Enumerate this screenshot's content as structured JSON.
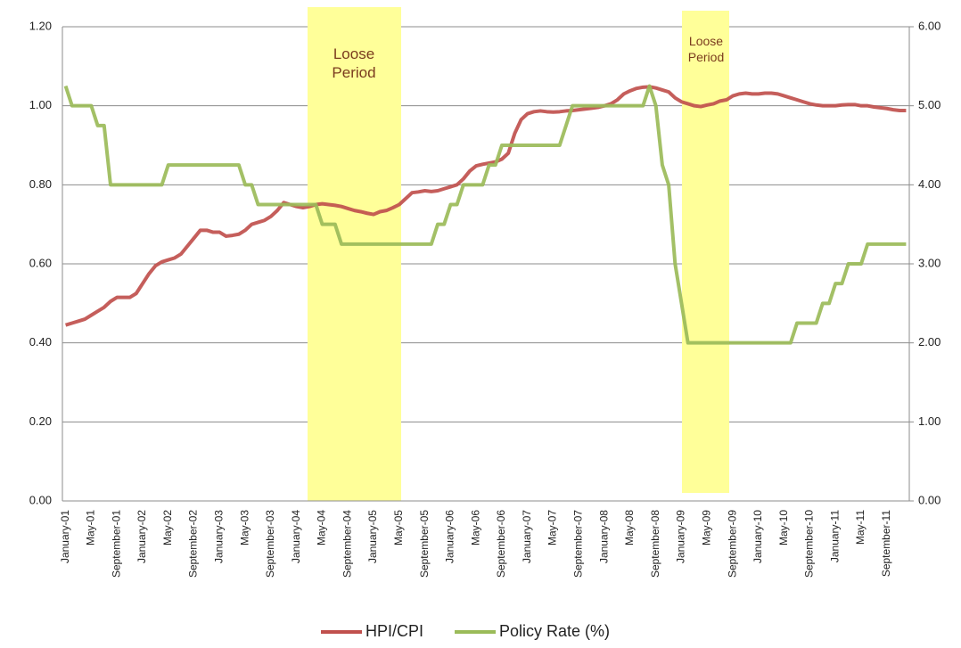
{
  "chart_data": {
    "type": "line",
    "annotations": [
      "Loose Period",
      "Loose Period"
    ],
    "categories": [
      "January-01",
      null,
      null,
      null,
      "May-01",
      null,
      null,
      null,
      "September-01",
      null,
      null,
      null,
      "January-02",
      null,
      null,
      null,
      "May-02",
      null,
      null,
      null,
      "September-02",
      null,
      null,
      null,
      "January-03",
      null,
      null,
      null,
      "May-03",
      null,
      null,
      null,
      "September-03",
      null,
      null,
      null,
      "January-04",
      null,
      null,
      null,
      "May-04",
      null,
      null,
      null,
      "September-04",
      null,
      null,
      null,
      "January-05",
      null,
      null,
      null,
      "May-05",
      null,
      null,
      null,
      "September-05",
      null,
      null,
      null,
      "January-06",
      null,
      null,
      null,
      "May-06",
      null,
      null,
      null,
      "September-06",
      null,
      null,
      null,
      "January-07",
      null,
      null,
      null,
      "May-07",
      null,
      null,
      null,
      "September-07",
      null,
      null,
      null,
      "January-08",
      null,
      null,
      null,
      "May-08",
      null,
      null,
      null,
      "September-08",
      null,
      null,
      null,
      "January-09",
      null,
      null,
      null,
      "May-09",
      null,
      null,
      null,
      "September-09",
      null,
      null,
      null,
      "January-10",
      null,
      null,
      null,
      "May-10",
      null,
      null,
      null,
      "September-10",
      null,
      null,
      null,
      "January-11",
      null,
      null,
      null,
      "May-11",
      null,
      null,
      null,
      "September-11",
      null,
      null,
      null
    ],
    "series": [
      {
        "name": "HPI/CPI",
        "color": "#c0504d",
        "axis": "y",
        "values": [
          0.445,
          0.45,
          0.455,
          0.46,
          0.47,
          0.48,
          0.49,
          0.505,
          0.515,
          0.515,
          0.515,
          0.525,
          0.55,
          0.575,
          0.595,
          0.605,
          0.61,
          0.615,
          0.625,
          0.645,
          0.665,
          0.685,
          0.685,
          0.68,
          0.68,
          0.67,
          0.672,
          0.675,
          0.685,
          0.7,
          0.705,
          0.71,
          0.72,
          0.735,
          0.755,
          0.75,
          0.745,
          0.742,
          0.745,
          0.75,
          0.752,
          0.75,
          0.748,
          0.745,
          0.74,
          0.735,
          0.732,
          0.728,
          0.725,
          0.732,
          0.735,
          0.742,
          0.75,
          0.765,
          0.78,
          0.782,
          0.785,
          0.783,
          0.785,
          0.79,
          0.795,
          0.8,
          0.815,
          0.835,
          0.848,
          0.852,
          0.855,
          0.858,
          0.865,
          0.88,
          0.93,
          0.965,
          0.98,
          0.985,
          0.987,
          0.985,
          0.984,
          0.985,
          0.987,
          0.988,
          0.99,
          0.992,
          0.994,
          0.996,
          1.0,
          1.005,
          1.015,
          1.03,
          1.038,
          1.044,
          1.047,
          1.048,
          1.045,
          1.04,
          1.035,
          1.02,
          1.01,
          1.005,
          1.0,
          0.998,
          1.002,
          1.005,
          1.012,
          1.015,
          1.025,
          1.03,
          1.032,
          1.03,
          1.03,
          1.032,
          1.032,
          1.03,
          1.025,
          1.02,
          1.015,
          1.01,
          1.005,
          1.002,
          1.0,
          1.0,
          1.0,
          1.002,
          1.003,
          1.003,
          1.0,
          1.0,
          0.997,
          0.995,
          0.993,
          0.99,
          0.988,
          0.988
        ]
      },
      {
        "name": "Policy Rate (%)",
        "color": "#9bbb59",
        "axis": "y2",
        "values": [
          5.25,
          5,
          5,
          5,
          5,
          4.75,
          4.75,
          4,
          4,
          4,
          4,
          4,
          4,
          4,
          4,
          4,
          4.25,
          4.25,
          4.25,
          4.25,
          4.25,
          4.25,
          4.25,
          4.25,
          4.25,
          4.25,
          4.25,
          4.25,
          4,
          4,
          3.75,
          3.75,
          3.75,
          3.75,
          3.75,
          3.75,
          3.75,
          3.75,
          3.75,
          3.75,
          3.5,
          3.5,
          3.5,
          3.25,
          3.25,
          3.25,
          3.25,
          3.25,
          3.25,
          3.25,
          3.25,
          3.25,
          3.25,
          3.25,
          3.25,
          3.25,
          3.25,
          3.25,
          3.5,
          3.5,
          3.75,
          3.75,
          4,
          4,
          4,
          4,
          4.25,
          4.25,
          4.5,
          4.5,
          4.5,
          4.5,
          4.5,
          4.5,
          4.5,
          4.5,
          4.5,
          4.5,
          4.75,
          5,
          5,
          5,
          5,
          5,
          5,
          5,
          5,
          5,
          5,
          5,
          5,
          5.25,
          5,
          4.25,
          4,
          3,
          2.5,
          2,
          2,
          2,
          2,
          2,
          2,
          2,
          2,
          2,
          2,
          2,
          2,
          2,
          2,
          2,
          2,
          2,
          2.25,
          2.25,
          2.25,
          2.25,
          2.5,
          2.5,
          2.75,
          2.75,
          3,
          3,
          3,
          3.25,
          3.25,
          3.25,
          3.25,
          3.25,
          3.25,
          3.25
        ]
      }
    ],
    "ylim": [
      0,
      1.2
    ],
    "yticks": [
      {
        "value": 0,
        "label": "0.00"
      },
      {
        "value": 0.2,
        "label": "0.20"
      },
      {
        "value": 0.4,
        "label": "0.40"
      },
      {
        "value": 0.6,
        "label": "0.60"
      },
      {
        "value": 0.8,
        "label": "0.80"
      },
      {
        "value": 1,
        "label": "1.00"
      },
      {
        "value": 1.2,
        "label": "1.20"
      }
    ],
    "y2lim": [
      0,
      6
    ],
    "y2ticks": [
      {
        "value": 0,
        "label": "0.00"
      },
      {
        "value": 1,
        "label": "1.00"
      },
      {
        "value": 2,
        "label": "2.00"
      },
      {
        "value": 3,
        "label": "3.00"
      },
      {
        "value": 4,
        "label": "4.00"
      },
      {
        "value": 5,
        "label": "5.00"
      },
      {
        "value": 6,
        "label": "6.00"
      }
    ],
    "grid": true,
    "legend": "bottom"
  }
}
